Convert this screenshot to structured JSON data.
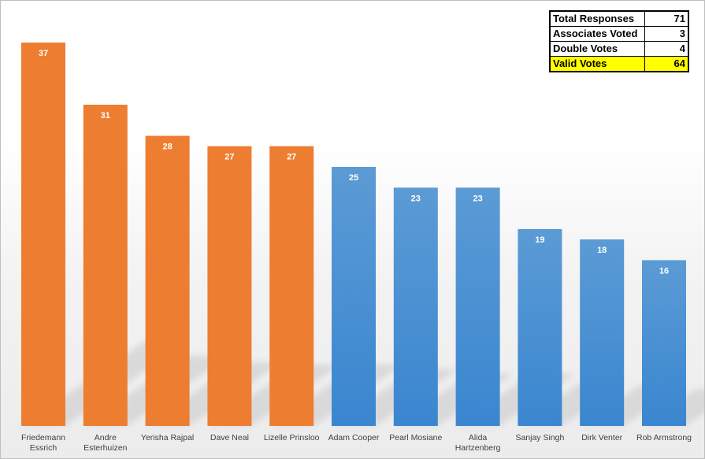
{
  "chart_data": {
    "type": "bar",
    "categories": [
      "Friedemann Essrich",
      "Andre Esterhuizen",
      "Yerisha Rajpal",
      "Dave Neal",
      "Lizelle Prinsloo",
      "Adam Cooper",
      "Pearl Mosiane",
      "Alida Hartzenberg",
      "Sanjay Singh",
      "Dirk Venter",
      "Rob Armstrong"
    ],
    "category_lines": [
      [
        "Friedemann",
        "Essrich"
      ],
      [
        "Andre",
        "Esterhuizen"
      ],
      [
        "Yerisha Rajpal"
      ],
      [
        "Dave Neal"
      ],
      [
        "Lizelle Prinsloo"
      ],
      [
        "Adam Cooper"
      ],
      [
        "Pearl Mosiane"
      ],
      [
        "Alida",
        "Hartzenberg"
      ],
      [
        "Sanjay Singh"
      ],
      [
        "Dirk Venter"
      ],
      [
        "Rob Armstrong"
      ]
    ],
    "values": [
      37,
      31,
      28,
      27,
      27,
      25,
      23,
      23,
      19,
      18,
      16
    ],
    "bar_colors": [
      "#ED7D31",
      "#ED7D31",
      "#ED7D31",
      "#ED7D31",
      "#ED7D31",
      "#5B9BD5",
      "#5B9BD5",
      "#5B9BD5",
      "#5B9BD5",
      "#5B9BD5",
      "#5B9BD5"
    ],
    "title": "",
    "xlabel": "",
    "ylabel": "",
    "ylim": [
      0,
      40
    ],
    "grid": false,
    "data_labels": true
  },
  "stats_table": {
    "rows": [
      {
        "label": "Total Responses",
        "value": "71"
      },
      {
        "label": "Associates Voted",
        "value": "3"
      },
      {
        "label": "Double Votes",
        "value": "4"
      },
      {
        "label": "Valid Votes",
        "value": "64"
      }
    ],
    "highlight_color": "#FFFF00"
  }
}
